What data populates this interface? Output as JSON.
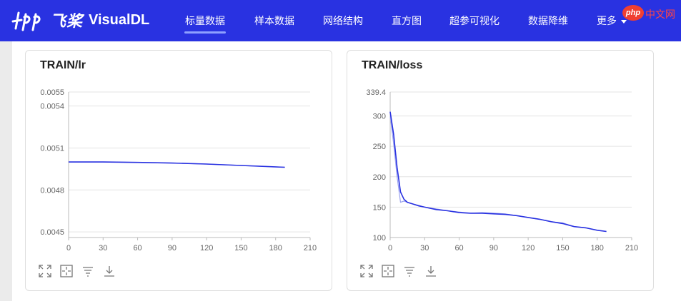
{
  "header": {
    "logo_cn": "飞桨",
    "logo_en": "VisualDL",
    "nav": [
      {
        "label": "标量数据",
        "active": true
      },
      {
        "label": "样本数据",
        "active": false
      },
      {
        "label": "网络结构",
        "active": false
      },
      {
        "label": "直方图",
        "active": false
      },
      {
        "label": "超参可视化",
        "active": false
      },
      {
        "label": "数据降维",
        "active": false
      },
      {
        "label": "更多",
        "active": false
      }
    ]
  },
  "watermark": {
    "badge": "php",
    "text": "中文网"
  },
  "colors": {
    "header_bg": "#2932e1",
    "line_main": "#2932e1",
    "line_raw": "#9aa2f0",
    "grid": "#e3e3e3",
    "axis_text": "#666666"
  },
  "chart_data": [
    {
      "type": "line",
      "title": "TRAIN/lr",
      "xlabel": "",
      "ylabel": "",
      "xlim": [
        0,
        210
      ],
      "ylim": [
        0.00446,
        0.0055
      ],
      "x_ticks": [
        "0",
        "30",
        "60",
        "90",
        "120",
        "150",
        "180",
        "210"
      ],
      "y_ticks": [
        "0.0045",
        "0.0048",
        "0.0051",
        "0.0054",
        "0.0055"
      ],
      "y_tick_values": [
        0.0045,
        0.0048,
        0.0051,
        0.0054,
        0.0055
      ],
      "grid": true,
      "series": [
        {
          "role": "raw",
          "x": [
            0,
            30,
            60,
            90,
            120,
            150,
            188
          ],
          "y": [
            0.005,
            0.005,
            0.004997,
            0.004992,
            0.004985,
            0.004975,
            0.004962
          ]
        },
        {
          "role": "smoothed",
          "x": [
            0,
            30,
            60,
            90,
            120,
            150,
            188
          ],
          "y": [
            0.005,
            0.005,
            0.004997,
            0.004992,
            0.004985,
            0.004975,
            0.004962
          ]
        }
      ]
    },
    {
      "type": "line",
      "title": "TRAIN/loss",
      "xlabel": "",
      "ylabel": "",
      "xlim": [
        0,
        210
      ],
      "ylim": [
        100,
        339.4
      ],
      "x_ticks": [
        "0",
        "30",
        "60",
        "90",
        "120",
        "150",
        "180",
        "210"
      ],
      "y_ticks": [
        "100",
        "150",
        "200",
        "250",
        "300",
        "339.4"
      ],
      "y_tick_values": [
        100,
        150,
        200,
        250,
        300,
        339.4
      ],
      "grid": true,
      "series": [
        {
          "role": "raw",
          "x": [
            0,
            3,
            6,
            9,
            12,
            15,
            20,
            25,
            30,
            40,
            50,
            60,
            70,
            80,
            90,
            100,
            110,
            120,
            130,
            140,
            150,
            160,
            170,
            180,
            188
          ],
          "y": [
            300,
            255,
            200,
            158,
            160,
            158,
            155,
            153,
            150,
            147,
            144,
            142,
            140,
            141,
            140,
            139,
            136,
            133,
            130,
            126,
            124,
            118,
            116,
            112,
            110
          ]
        },
        {
          "role": "smoothed",
          "x": [
            0,
            3,
            6,
            9,
            12,
            15,
            20,
            25,
            30,
            40,
            50,
            60,
            70,
            80,
            90,
            100,
            110,
            120,
            130,
            140,
            150,
            160,
            170,
            180,
            188
          ],
          "y": [
            307,
            270,
            215,
            175,
            163,
            158,
            155,
            152,
            150,
            146,
            144,
            141,
            140,
            140,
            139,
            138,
            136,
            133,
            130,
            126,
            123,
            118,
            116,
            112,
            110
          ]
        }
      ]
    }
  ]
}
